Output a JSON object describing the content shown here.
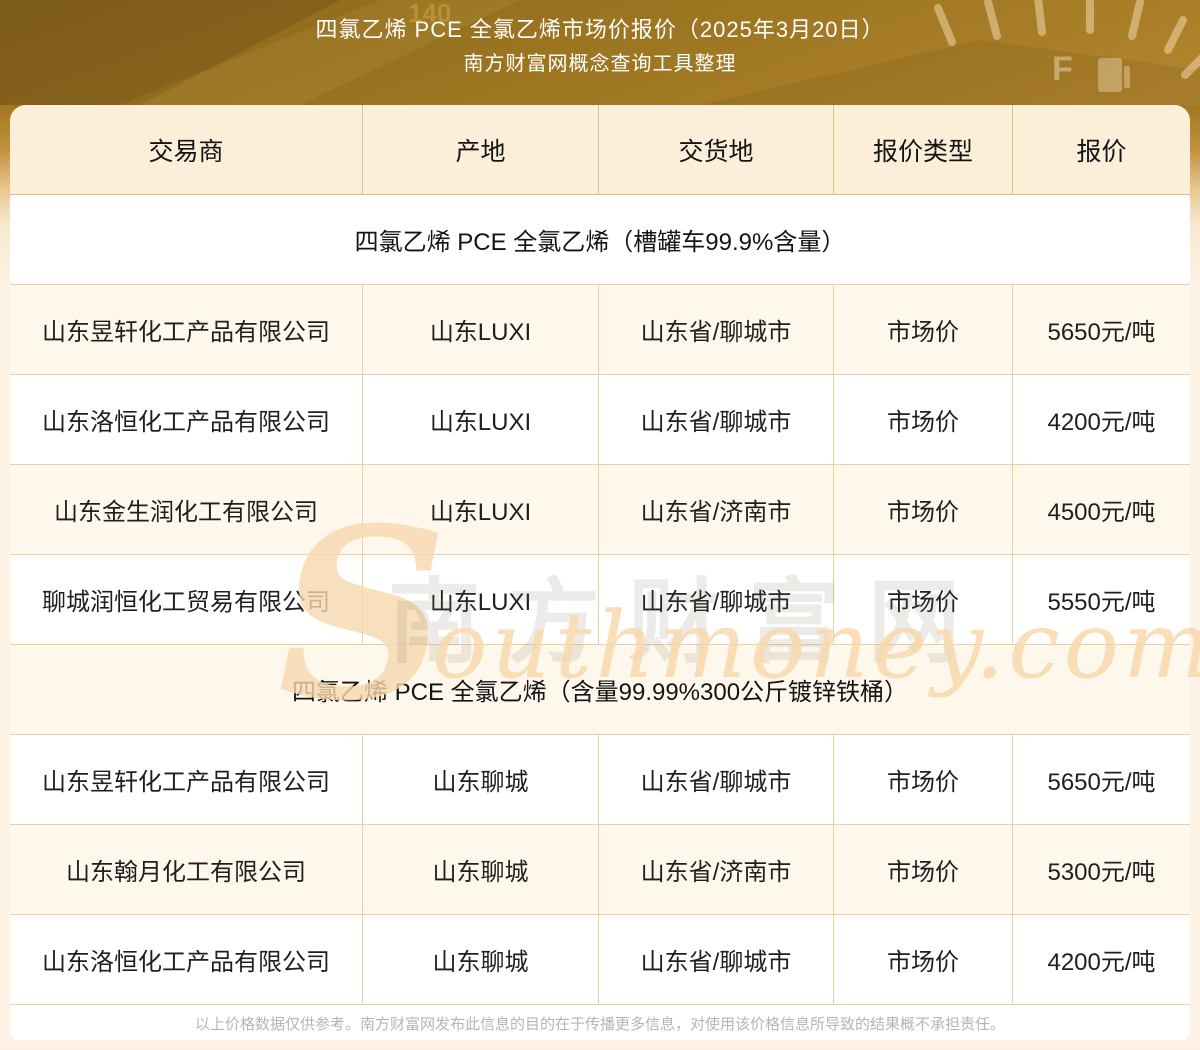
{
  "banner": {
    "title_line1": "四氯乙烯 PCE 全氯乙烯市场价报价（2025年3月20日）",
    "title_line2": "南方财富网概念查询工具整理",
    "gauge_full_label": "F",
    "gauge_number_label": "140"
  },
  "table": {
    "columns": [
      "交易商",
      "产地",
      "交货地",
      "报价类型",
      "报价"
    ],
    "sections": [
      {
        "title": "四氯乙烯 PCE 全氯乙烯（槽罐车99.9%含量）",
        "rows": [
          [
            "山东昱轩化工产品有限公司",
            "山东LUXI",
            "山东省/聊城市",
            "市场价",
            "5650元/吨"
          ],
          [
            "山东洛恒化工产品有限公司",
            "山东LUXI",
            "山东省/聊城市",
            "市场价",
            "4200元/吨"
          ],
          [
            "山东金生润化工有限公司",
            "山东LUXI",
            "山东省/济南市",
            "市场价",
            "4500元/吨"
          ],
          [
            "聊城润恒化工贸易有限公司",
            "山东LUXI",
            "山东省/聊城市",
            "市场价",
            "5550元/吨"
          ]
        ]
      },
      {
        "title": "四氯乙烯 PCE 全氯乙烯（含量99.99%300公斤镀锌铁桶）",
        "rows": [
          [
            "山东昱轩化工产品有限公司",
            "山东聊城",
            "山东省/聊城市",
            "市场价",
            "5650元/吨"
          ],
          [
            "山东翰月化工有限公司",
            "山东聊城",
            "山东省/济南市",
            "市场价",
            "5300元/吨"
          ],
          [
            "山东洛恒化工产品有限公司",
            "山东聊城",
            "山东省/聊城市",
            "市场价",
            "4200元/吨"
          ]
        ]
      }
    ]
  },
  "watermark": {
    "initial": "S",
    "cn": "南方财富网",
    "en": "outhmoney.com"
  },
  "footer": {
    "disclaimer": "以上价格数据仅供参考。南方财富网发布此信息的目的在于传播更多信息，对使用该价格信息所导致的结果概不承担责任。"
  },
  "colors": {
    "banner_gold": "#9a7420",
    "header_bg": "#fcefda",
    "row_cream": "#fdf7ec",
    "row_white": "#ffffff",
    "border_tan": "#ead0a0",
    "body_text": "#1f1f1f",
    "footer_text": "#b5b5b5",
    "watermark_orange": "#f8d9ac",
    "title_text": "#ffffff"
  }
}
